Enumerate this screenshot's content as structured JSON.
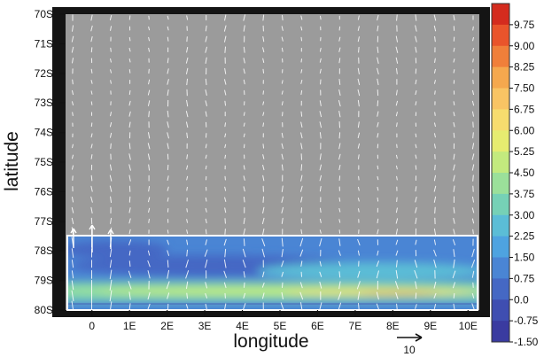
{
  "chart_data": {
    "type": "vector-field",
    "xlabel": "longitude",
    "ylabel": "latitude",
    "x_ticks": [
      "0",
      "1E",
      "2E",
      "3E",
      "4E",
      "5E",
      "6E",
      "7E",
      "8E",
      "9E",
      "10E"
    ],
    "y_ticks": [
      "70S",
      "71S",
      "72S",
      "73S",
      "74S",
      "75S",
      "76S",
      "77S",
      "78S",
      "79S",
      "80S"
    ],
    "xlim": [
      -0.7,
      10.3
    ],
    "ylim": [
      70,
      80
    ],
    "filled_region_lat": [
      77.7,
      80
    ],
    "reference_vector_label": "10",
    "colorbar": {
      "labels": [
        "9.75",
        "9.00",
        "8.25",
        "7.50",
        "6.75",
        "6.00",
        "5.25",
        "4.50",
        "3.75",
        "3.00",
        "2.25",
        "1.50",
        "0.75",
        "0.0",
        "-0.75",
        "-1.50"
      ],
      "colors": [
        "#d42b1e",
        "#e9542b",
        "#f07f3a",
        "#f5a84e",
        "#f9c464",
        "#f7dc6e",
        "#e6ec70",
        "#c3ea7e",
        "#9be09a",
        "#76d1b6",
        "#5bbdd6",
        "#4ea3e0",
        "#4a85d4",
        "#4568c4",
        "#3f4eb1",
        "#3a3ba0"
      ]
    },
    "grid": false
  }
}
